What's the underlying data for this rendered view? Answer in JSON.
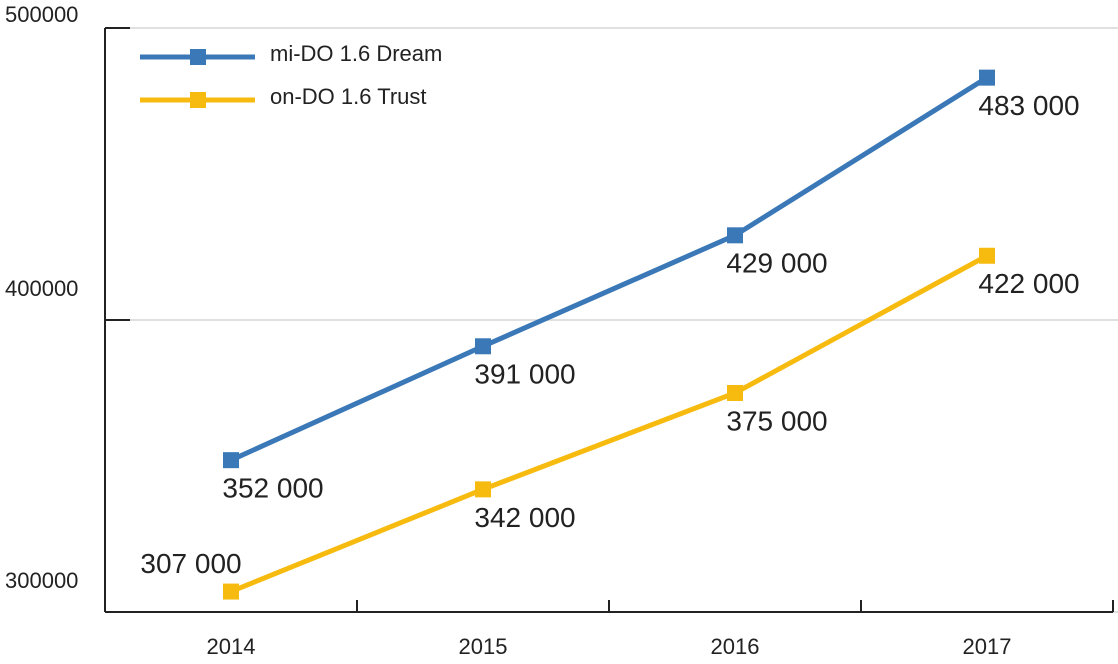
{
  "chart_data": {
    "type": "line",
    "categories": [
      "2014",
      "2015",
      "2016",
      "2017"
    ],
    "series": [
      {
        "name": "mi-DO 1.6 Dream",
        "color": "#3a78b8",
        "values": [
          352000,
          391000,
          429000,
          483000
        ],
        "value_labels": [
          "352 000",
          "391 000",
          "429 000",
          "483 000"
        ]
      },
      {
        "name": "on-DO 1.6 Trust",
        "color": "#f7bb10",
        "values": [
          307000,
          342000,
          375000,
          422000
        ],
        "value_labels": [
          "307 000",
          "342 000",
          "375 000",
          "422 000"
        ]
      }
    ],
    "ylim": [
      300000,
      500000
    ],
    "yticks": [
      300000,
      400000,
      500000
    ],
    "grid": true,
    "legend": "top-left"
  }
}
